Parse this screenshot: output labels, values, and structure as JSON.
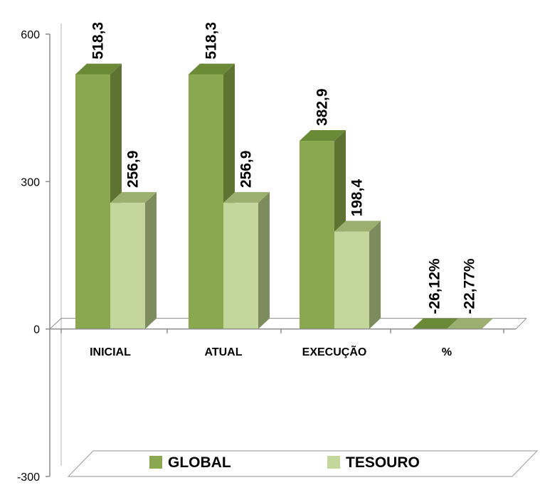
{
  "chart_data": {
    "type": "bar",
    "style": "3d-clustered-column",
    "categories": [
      "INICIAL",
      "ATUAL",
      "EXECUÇÃO",
      "%"
    ],
    "series": [
      {
        "name": "GLOBAL",
        "values": [
          518.3,
          518.3,
          382.9,
          -0.2612
        ],
        "labels": [
          "518,3",
          "518,3",
          "382,9",
          "-26,12%"
        ],
        "color": "#8aa84f",
        "side_color": "#5e7332",
        "top_color": "#6b8a38"
      },
      {
        "name": "TESOURO",
        "values": [
          256.9,
          256.9,
          198.4,
          -0.2277
        ],
        "labels": [
          "256,9",
          "256,9",
          "198,4",
          "-22,77%"
        ],
        "color": "#c3d69b",
        "side_color": "#7d8c5d",
        "top_color": "#9bb070"
      }
    ],
    "y_ticks": [
      "600",
      "300",
      "0",
      "-300"
    ],
    "ylim": [
      -300,
      600
    ],
    "legend_position": "bottom",
    "grid": false
  }
}
